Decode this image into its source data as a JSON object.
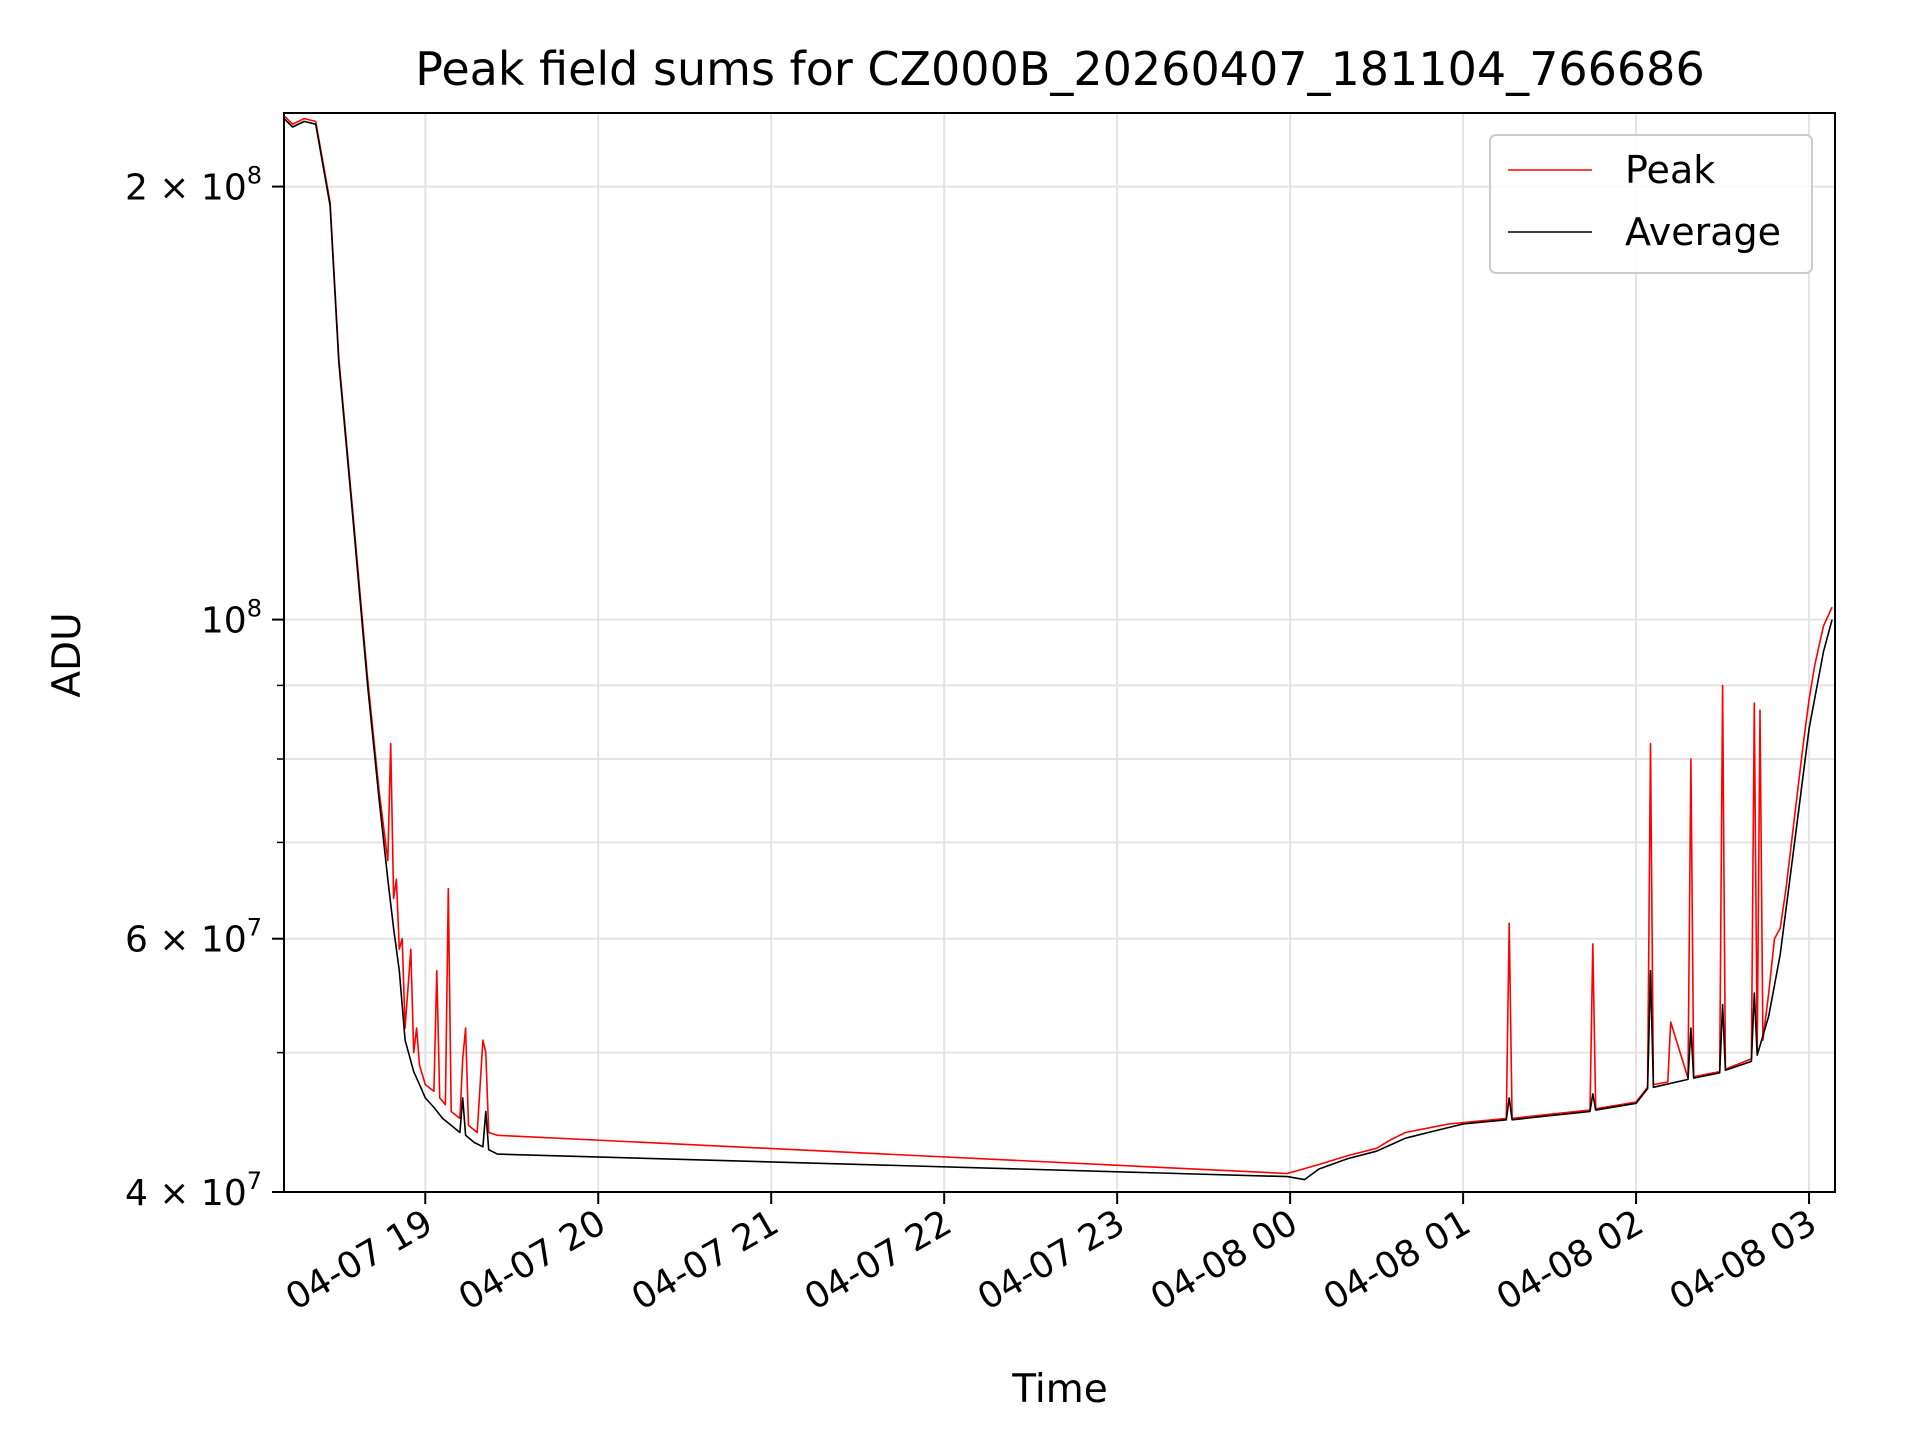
{
  "chart_data": {
    "type": "line",
    "title": "Peak field sums for CZ000B_20260407_181104_766686",
    "xlabel": "Time",
    "ylabel": "ADU",
    "x_unit": "datetime",
    "xlim": [
      "2026-04-07 18:11",
      "2026-04-08 03:09"
    ],
    "ylim": [
      40000000,
      225000000
    ],
    "yscale": "log",
    "grid": true,
    "legend_position": "top-right",
    "x_ticks": [
      {
        "x": "2026-04-07 19:00",
        "label": "04-07 19"
      },
      {
        "x": "2026-04-07 20:00",
        "label": "04-07 20"
      },
      {
        "x": "2026-04-07 21:00",
        "label": "04-07 21"
      },
      {
        "x": "2026-04-07 22:00",
        "label": "04-07 22"
      },
      {
        "x": "2026-04-07 23:00",
        "label": "04-07 23"
      },
      {
        "x": "2026-04-08 00:00",
        "label": "04-08 00"
      },
      {
        "x": "2026-04-08 01:00",
        "label": "04-08 01"
      },
      {
        "x": "2026-04-08 02:00",
        "label": "04-08 02"
      },
      {
        "x": "2026-04-08 03:00",
        "label": "04-08 03"
      }
    ],
    "y_ticks": [
      {
        "y": 40000000,
        "base": "4 × 10",
        "exp": "7"
      },
      {
        "y": 60000000,
        "base": "6 × 10",
        "exp": "7"
      },
      {
        "y": 100000000,
        "base": "10",
        "exp": "8"
      },
      {
        "y": 200000000,
        "base": "2 × 10",
        "exp": "8"
      }
    ],
    "y_minor_ticks": [
      50000000,
      70000000,
      80000000,
      90000000
    ],
    "series": [
      {
        "name": "Peak",
        "color": "#ff0000",
        "points": [
          [
            "2026-04-07 18:11",
            224000000
          ],
          [
            "2026-04-07 18:14",
            221000000
          ],
          [
            "2026-04-07 18:18",
            223000000
          ],
          [
            "2026-04-07 18:22",
            222000000
          ],
          [
            "2026-04-07 18:27",
            195000000
          ],
          [
            "2026-04-07 18:30",
            152000000
          ],
          [
            "2026-04-07 18:35",
            118000000
          ],
          [
            "2026-04-07 18:40",
            91000000
          ],
          [
            "2026-04-07 18:44",
            76000000
          ],
          [
            "2026-04-07 18:47",
            68000000
          ],
          [
            "2026-04-07 18:48",
            82000000
          ],
          [
            "2026-04-07 18:49",
            64000000
          ],
          [
            "2026-04-07 18:50",
            66000000
          ],
          [
            "2026-04-07 18:51",
            59000000
          ],
          [
            "2026-04-07 18:52",
            60000000
          ],
          [
            "2026-04-07 18:53",
            52000000
          ],
          [
            "2026-04-07 18:55",
            59000000
          ],
          [
            "2026-04-07 18:56",
            50000000
          ],
          [
            "2026-04-07 18:57",
            52000000
          ],
          [
            "2026-04-07 18:58",
            49000000
          ],
          [
            "2026-04-07 19:00",
            47500000
          ],
          [
            "2026-04-07 19:03",
            47000000
          ],
          [
            "2026-04-07 19:04",
            57000000
          ],
          [
            "2026-04-07 19:05",
            46500000
          ],
          [
            "2026-04-07 19:07",
            46000000
          ],
          [
            "2026-04-07 19:08",
            65000000
          ],
          [
            "2026-04-07 19:09",
            45500000
          ],
          [
            "2026-04-07 19:12",
            45000000
          ],
          [
            "2026-04-07 19:13",
            49500000
          ],
          [
            "2026-04-07 19:14",
            52000000
          ],
          [
            "2026-04-07 19:15",
            44500000
          ],
          [
            "2026-04-07 19:18",
            44000000
          ],
          [
            "2026-04-07 19:20",
            51000000
          ],
          [
            "2026-04-07 19:21",
            50000000
          ],
          [
            "2026-04-07 19:22",
            44000000
          ],
          [
            "2026-04-07 19:25",
            43800000
          ],
          [
            "2026-04-07 23:59",
            41200000
          ],
          [
            "2026-04-08 00:10",
            41800000
          ],
          [
            "2026-04-08 00:20",
            42400000
          ],
          [
            "2026-04-08 00:30",
            42900000
          ],
          [
            "2026-04-08 00:35",
            43500000
          ],
          [
            "2026-04-08 00:40",
            44000000
          ],
          [
            "2026-04-08 00:50",
            44400000
          ],
          [
            "2026-04-08 00:55",
            44600000
          ],
          [
            "2026-04-08 01:15",
            45000000
          ],
          [
            "2026-04-08 01:16",
            61500000
          ],
          [
            "2026-04-08 01:17",
            45000000
          ],
          [
            "2026-04-08 01:30",
            45300000
          ],
          [
            "2026-04-08 01:44",
            45600000
          ],
          [
            "2026-04-08 01:45",
            59500000
          ],
          [
            "2026-04-08 01:46",
            45700000
          ],
          [
            "2026-04-08 02:00",
            46200000
          ],
          [
            "2026-04-08 02:04",
            47300000
          ],
          [
            "2026-04-08 02:05",
            82000000
          ],
          [
            "2026-04-08 02:06",
            47500000
          ],
          [
            "2026-04-08 02:11",
            47700000
          ],
          [
            "2026-04-08 02:12",
            52500000
          ],
          [
            "2026-04-08 02:18",
            48000000
          ],
          [
            "2026-04-08 02:19",
            80000000
          ],
          [
            "2026-04-08 02:20",
            48100000
          ],
          [
            "2026-04-08 02:29",
            48500000
          ],
          [
            "2026-04-08 02:30",
            90000000
          ],
          [
            "2026-04-08 02:31",
            48700000
          ],
          [
            "2026-04-08 02:40",
            49500000
          ],
          [
            "2026-04-08 02:41",
            87500000
          ],
          [
            "2026-04-08 02:42",
            50000000
          ],
          [
            "2026-04-08 02:43",
            86500000
          ],
          [
            "2026-04-08 02:44",
            51000000
          ],
          [
            "2026-04-08 02:46",
            55000000
          ],
          [
            "2026-04-08 02:48",
            60000000
          ],
          [
            "2026-04-08 02:50",
            61000000
          ],
          [
            "2026-04-08 02:52",
            65000000
          ],
          [
            "2026-04-08 02:55",
            73000000
          ],
          [
            "2026-04-08 02:58",
            82000000
          ],
          [
            "2026-04-08 03:00",
            88000000
          ],
          [
            "2026-04-08 03:02",
            93000000
          ],
          [
            "2026-04-08 03:05",
            99000000
          ],
          [
            "2026-04-08 03:08",
            102000000
          ]
        ]
      },
      {
        "name": "Average",
        "color": "#000000",
        "points": [
          [
            "2026-04-07 18:11",
            223000000
          ],
          [
            "2026-04-07 18:14",
            220000000
          ],
          [
            "2026-04-07 18:18",
            222000000
          ],
          [
            "2026-04-07 18:22",
            221000000
          ],
          [
            "2026-04-07 18:27",
            194000000
          ],
          [
            "2026-04-07 18:30",
            151000000
          ],
          [
            "2026-04-07 18:35",
            117000000
          ],
          [
            "2026-04-07 18:40",
            90000000
          ],
          [
            "2026-04-07 18:44",
            75000000
          ],
          [
            "2026-04-07 18:47",
            66000000
          ],
          [
            "2026-04-07 18:49",
            61000000
          ],
          [
            "2026-04-07 18:51",
            57000000
          ],
          [
            "2026-04-07 18:53",
            51000000
          ],
          [
            "2026-04-07 18:56",
            48500000
          ],
          [
            "2026-04-07 18:58",
            47500000
          ],
          [
            "2026-04-07 19:00",
            46500000
          ],
          [
            "2026-04-07 19:03",
            45800000
          ],
          [
            "2026-04-07 19:06",
            45000000
          ],
          [
            "2026-04-07 19:09",
            44500000
          ],
          [
            "2026-04-07 19:12",
            44000000
          ],
          [
            "2026-04-07 19:13",
            46500000
          ],
          [
            "2026-04-07 19:14",
            43800000
          ],
          [
            "2026-04-07 19:17",
            43300000
          ],
          [
            "2026-04-07 19:20",
            43000000
          ],
          [
            "2026-04-07 19:21",
            45500000
          ],
          [
            "2026-04-07 19:22",
            42800000
          ],
          [
            "2026-04-07 19:25",
            42500000
          ],
          [
            "2026-04-07 23:59",
            41000000
          ],
          [
            "2026-04-08 00:05",
            40800000
          ],
          [
            "2026-04-08 00:10",
            41500000
          ],
          [
            "2026-04-08 00:20",
            42200000
          ],
          [
            "2026-04-08 00:30",
            42700000
          ],
          [
            "2026-04-08 00:40",
            43600000
          ],
          [
            "2026-04-08 00:50",
            44100000
          ],
          [
            "2026-04-08 01:00",
            44600000
          ],
          [
            "2026-04-08 01:15",
            44900000
          ],
          [
            "2026-04-08 01:16",
            46500000
          ],
          [
            "2026-04-08 01:17",
            44900000
          ],
          [
            "2026-04-08 01:30",
            45200000
          ],
          [
            "2026-04-08 01:44",
            45500000
          ],
          [
            "2026-04-08 01:45",
            46800000
          ],
          [
            "2026-04-08 01:46",
            45600000
          ],
          [
            "2026-04-08 02:00",
            46100000
          ],
          [
            "2026-04-08 02:04",
            47200000
          ],
          [
            "2026-04-08 02:05",
            57000000
          ],
          [
            "2026-04-08 02:06",
            47300000
          ],
          [
            "2026-04-08 02:18",
            47900000
          ],
          [
            "2026-04-08 02:19",
            52000000
          ],
          [
            "2026-04-08 02:20",
            48000000
          ],
          [
            "2026-04-08 02:29",
            48400000
          ],
          [
            "2026-04-08 02:30",
            54000000
          ],
          [
            "2026-04-08 02:31",
            48600000
          ],
          [
            "2026-04-08 02:40",
            49300000
          ],
          [
            "2026-04-08 02:41",
            55000000
          ],
          [
            "2026-04-08 02:42",
            49800000
          ],
          [
            "2026-04-08 02:46",
            53000000
          ],
          [
            "2026-04-08 02:50",
            58500000
          ],
          [
            "2026-04-08 02:55",
            70000000
          ],
          [
            "2026-04-08 03:00",
            84000000
          ],
          [
            "2026-04-08 03:05",
            95000000
          ],
          [
            "2026-04-08 03:08",
            100000000
          ]
        ]
      }
    ]
  }
}
